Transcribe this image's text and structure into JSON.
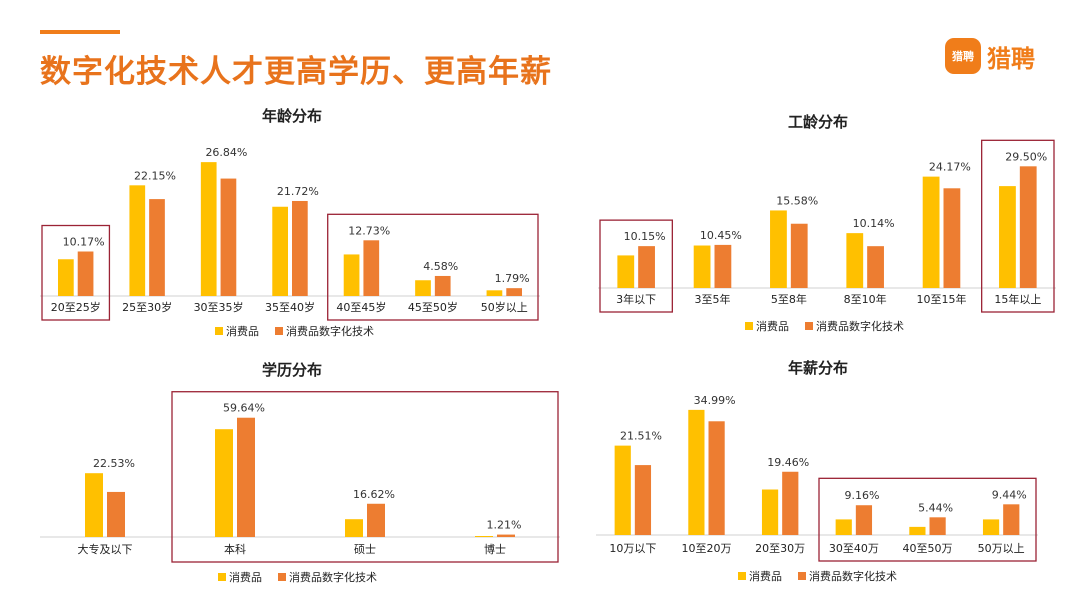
{
  "header": {
    "title": "数字化技术人才更高学历、更高年薪"
  },
  "logo": {
    "icon_text": "猎聘",
    "text": "猎聘"
  },
  "colors": {
    "series1": "#ffc000",
    "series2": "#ed7d31",
    "highlight": "#9b2335",
    "accent": "#e8731c"
  },
  "legend": [
    "消费品",
    "消费品数字化技术"
  ],
  "chart_data": [
    {
      "type": "bar",
      "title": "年龄分布",
      "categories": [
        "20至25岁",
        "25至30岁",
        "30至35岁",
        "35至40岁",
        "40至45岁",
        "45至50岁",
        "50岁以上"
      ],
      "series": [
        {
          "name": "消费品",
          "values": [
            8.4,
            25.3,
            30.6,
            20.4,
            9.5,
            3.6,
            1.3
          ]
        },
        {
          "name": "消费品数字化技术",
          "values": [
            10.17,
            22.15,
            26.84,
            21.72,
            12.73,
            4.58,
            1.79
          ]
        }
      ],
      "data_labels": [
        "10.17%",
        "22.15%",
        "26.84%",
        "21.72%",
        "12.73%",
        "4.58%",
        "1.79%"
      ],
      "ylim": [
        0,
        32
      ],
      "highlight_groups": [
        [
          0,
          0
        ],
        [
          4,
          6
        ]
      ]
    },
    {
      "type": "bar",
      "title": "工龄分布",
      "categories": [
        "3年以下",
        "3至5年",
        "5至8年",
        "8至10年",
        "10至15年",
        "15年以上"
      ],
      "series": [
        {
          "name": "消费品",
          "values": [
            7.9,
            10.3,
            18.8,
            13.3,
            27.0,
            24.7
          ]
        },
        {
          "name": "消费品数字化技术",
          "values": [
            10.15,
            10.45,
            15.58,
            10.14,
            24.17,
            29.5
          ]
        }
      ],
      "data_labels": [
        "10.15%",
        "10.45%",
        "15.58%",
        "10.14%",
        "24.17%",
        "29.50%"
      ],
      "ylim": [
        0,
        32
      ],
      "highlight_groups": [
        [
          0,
          0
        ],
        [
          5,
          5
        ]
      ]
    },
    {
      "type": "bar",
      "title": "学历分布",
      "categories": [
        "大专及以下",
        "本科",
        "硕士",
        "博士"
      ],
      "series": [
        {
          "name": "消费品",
          "values": [
            31.9,
            53.9,
            8.9,
            0.5
          ]
        },
        {
          "name": "消费品数字化技术",
          "values": [
            22.53,
            59.64,
            16.62,
            1.21
          ]
        }
      ],
      "data_labels": [
        "22.53%",
        "59.64%",
        "16.62%",
        "1.21%"
      ],
      "ylim": [
        0,
        64
      ],
      "highlight_groups": [
        [
          1,
          3
        ]
      ]
    },
    {
      "type": "bar",
      "title": "年薪分布",
      "categories": [
        "10万以下",
        "10至20万",
        "20至30万",
        "30至40万",
        "40至50万",
        "50万以上"
      ],
      "series": [
        {
          "name": "消费品",
          "values": [
            27.5,
            38.5,
            14.0,
            4.8,
            2.5,
            4.8
          ]
        },
        {
          "name": "消费品数字化技术",
          "values": [
            21.51,
            34.99,
            19.46,
            9.16,
            5.44,
            9.44
          ]
        }
      ],
      "data_labels": [
        "21.51%",
        "34.99%",
        "19.46%",
        "9.16%",
        "5.44%",
        "9.44%"
      ],
      "ylim": [
        0,
        40
      ],
      "highlight_groups": [
        [
          3,
          5
        ]
      ]
    }
  ]
}
